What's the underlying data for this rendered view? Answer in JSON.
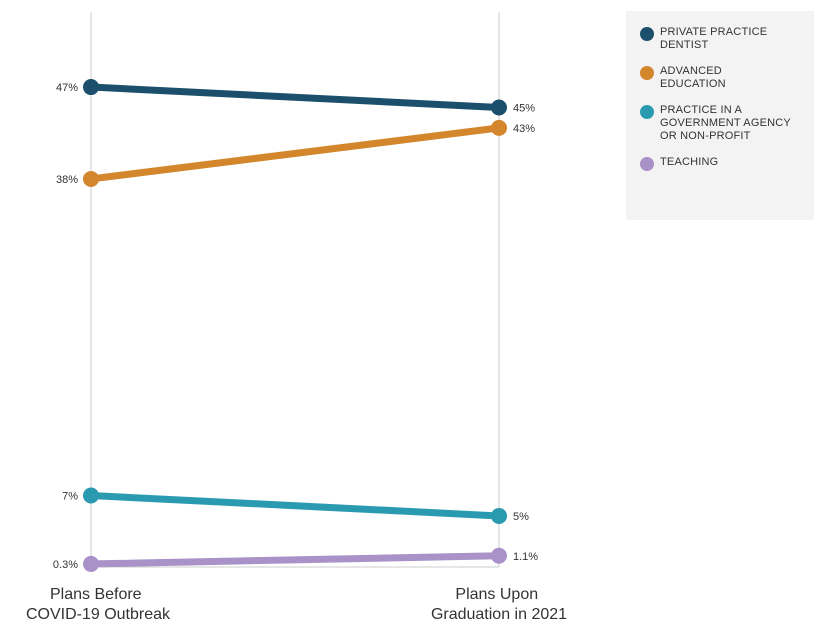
{
  "chart_data": {
    "type": "line",
    "categories": [
      "Plans Before\nCOVID-19 Outbreak",
      "Plans Upon\nGraduation in 2021"
    ],
    "series": [
      {
        "name": "PRIVATE PRACTICE DENTIST",
        "values": [
          47,
          45
        ],
        "labels": [
          "47%",
          "45%"
        ],
        "color": "#1b4f6b"
      },
      {
        "name": "ADVANCED EDUCATION",
        "values": [
          38,
          43
        ],
        "labels": [
          "38%",
          "43%"
        ],
        "color": "#d4862d"
      },
      {
        "name": "PRACTICE IN A GOVERNMENT AGENCY OR NON-PROFIT",
        "values": [
          7,
          5
        ],
        "labels": [
          "7%",
          "5%"
        ],
        "color": "#2a9ab0"
      },
      {
        "name": "TEACHING",
        "values": [
          0.3,
          1.1
        ],
        "labels": [
          "0.3%",
          "1.1%"
        ],
        "color": "#a892c8"
      }
    ],
    "ylim": [
      0,
      52
    ],
    "grid": false,
    "legend_position": "top-right"
  }
}
